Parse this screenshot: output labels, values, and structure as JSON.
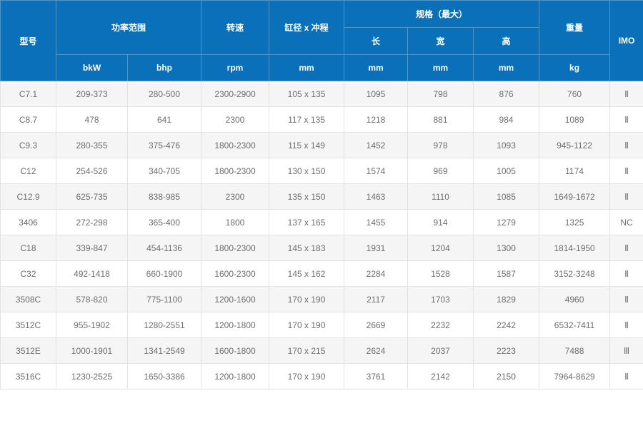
{
  "table": {
    "header": {
      "model": "型号",
      "power_range": "功率范围",
      "speed": "转速",
      "bore_stroke": "缸径 x 冲程",
      "spec_max": "规格（最大）",
      "spec_cols": [
        "长",
        "宽",
        "高"
      ],
      "weight": "重量",
      "imo": "IMO",
      "units": [
        "bkW",
        "bhp",
        "rpm",
        "mm",
        "mm",
        "mm",
        "mm",
        "kg"
      ]
    },
    "rows": [
      [
        "C7.1",
        "209-373",
        "280-500",
        "2300-2900",
        "105 x 135",
        "1095",
        "798",
        "876",
        "760",
        "Ⅱ"
      ],
      [
        "C8.7",
        "478",
        "641",
        "2300",
        "117 x 135",
        "1218",
        "881",
        "984",
        "1089",
        "Ⅱ"
      ],
      [
        "C9.3",
        "280-355",
        "375-476",
        "1800-2300",
        "115 x 149",
        "1452",
        "978",
        "1093",
        "945-1122",
        "Ⅱ"
      ],
      [
        "C12",
        "254-526",
        "340-705",
        "1800-2300",
        "130 x 150",
        "1574",
        "969",
        "1005",
        "1174",
        "Ⅱ"
      ],
      [
        "C12.9",
        "625-735",
        "838-985",
        "2300",
        "135 x 150",
        "1463",
        "1110",
        "1085",
        "1649-1672",
        "Ⅱ"
      ],
      [
        "3406",
        "272-298",
        "365-400",
        "1800",
        "137 x 165",
        "1455",
        "914",
        "1279",
        "1325",
        "NC"
      ],
      [
        "C18",
        "339-847",
        "454-1136",
        "1800-2300",
        "145 x 183",
        "1931",
        "1204",
        "1300",
        "1814-1950",
        "Ⅱ"
      ],
      [
        "C32",
        "492-1418",
        "660-1900",
        "1600-2300",
        "145 x 162",
        "2284",
        "1528",
        "1587",
        "3152-3248",
        "Ⅱ"
      ],
      [
        "3508C",
        "578-820",
        "775-1100",
        "1200-1600",
        "170 x 190",
        "2117",
        "1703",
        "1829",
        "4960",
        "Ⅱ"
      ],
      [
        "3512C",
        "955-1902",
        "1280-2551",
        "1200-1800",
        "170 x 190",
        "2669",
        "2232",
        "2242",
        "6532-7411",
        "Ⅱ"
      ],
      [
        "3512E",
        "1000-1901",
        "1341-2549",
        "1600-1800",
        "170 x 215",
        "2624",
        "2037",
        "2223",
        "7488",
        "Ⅲ"
      ],
      [
        "3516C",
        "1230-2525",
        "1650-3386",
        "1200-1800",
        "170 x 190",
        "3761",
        "2142",
        "2150",
        "7964-8629",
        "Ⅱ"
      ]
    ],
    "colors": {
      "header_bg": "#0a70b9",
      "header_border": "#4f95c9",
      "header_text": "#ffffff",
      "row_stripe_bg": "#f5f5f5",
      "row_bg": "#ffffff",
      "cell_border": "#e3e3e3",
      "cell_text": "#6e6e6e",
      "page_bg": "#ffffff"
    }
  }
}
